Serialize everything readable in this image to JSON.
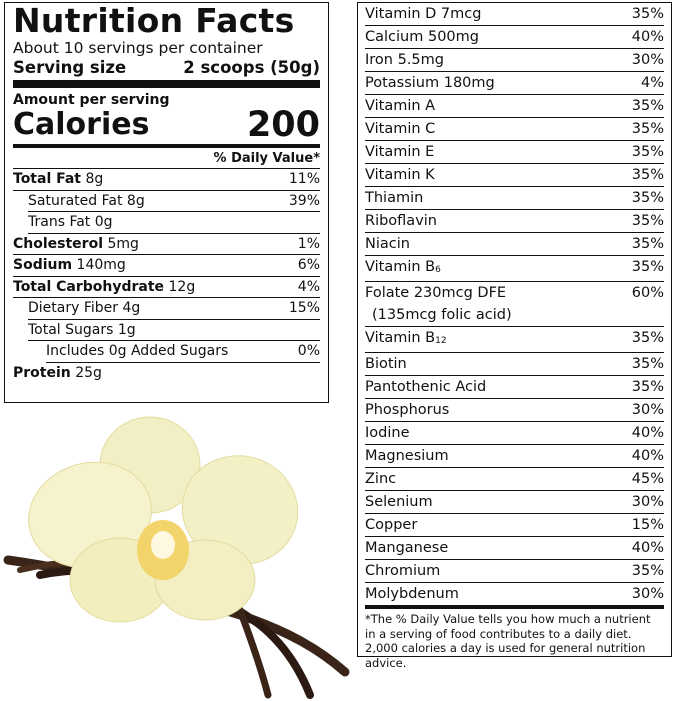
{
  "left_panel": {
    "title": "Nutrition Facts",
    "servings": "About 10 servings per container",
    "serving_size_label": "Serving size",
    "serving_size_value": "2 scoops (50g)",
    "amount_label": "Amount per serving",
    "calories_label": "Calories",
    "calories_value": "200",
    "dv_header": "% Daily Value*",
    "rows": [
      {
        "name": "Total Fat",
        "amount": "8g",
        "dv": "11%"
      },
      {
        "name": "Saturated Fat",
        "amount": "8g",
        "dv": "39%"
      },
      {
        "name": "Trans Fat",
        "amount": "0g"
      },
      {
        "name": "Cholesterol",
        "amount": "5mg",
        "dv": "1%"
      },
      {
        "name": "Sodium",
        "amount": "140mg",
        "dv": "6%"
      },
      {
        "name": "Total Carbohydrate",
        "amount": "12g",
        "dv": "4%"
      },
      {
        "name": "Dietary Fiber",
        "amount": "4g",
        "dv": "15%"
      },
      {
        "name": "Total Sugars",
        "amount": "1g"
      },
      {
        "name": "Includes 0g Added Sugars",
        "dv": "0%"
      },
      {
        "name": "Protein",
        "amount": "25g"
      }
    ]
  },
  "right_panel": {
    "rows": [
      {
        "name": "Vitamin D 7mcg",
        "dv": "35%"
      },
      {
        "name": "Calcium 500mg",
        "dv": "40%"
      },
      {
        "name": "Iron 5.5mg",
        "dv": "30%"
      },
      {
        "name": "Potassium 180mg",
        "dv": "4%"
      },
      {
        "name": "Vitamin A",
        "dv": "35%"
      },
      {
        "name": "Vitamin C",
        "dv": "35%"
      },
      {
        "name": "Vitamin E",
        "dv": "35%"
      },
      {
        "name": "Vitamin K",
        "dv": "35%"
      },
      {
        "name": "Thiamin",
        "dv": "35%"
      },
      {
        "name": "Riboflavin",
        "dv": "35%"
      },
      {
        "name": "Niacin",
        "dv": "35%"
      },
      {
        "name": "Vitamin B",
        "sub": "6",
        "dv": "35%"
      },
      {
        "name": "Folate 230mcg DFE",
        "note": "(135mcg folic acid)",
        "dv": "60%"
      },
      {
        "name": "Vitamin B",
        "sub": "12",
        "dv": "35%"
      },
      {
        "name": "Biotin",
        "dv": "35%"
      },
      {
        "name": "Pantothenic Acid",
        "dv": "35%"
      },
      {
        "name": "Phosphorus",
        "dv": "30%"
      },
      {
        "name": "Iodine",
        "dv": "40%"
      },
      {
        "name": "Magnesium",
        "dv": "40%"
      },
      {
        "name": "Zinc",
        "dv": "45%"
      },
      {
        "name": "Selenium",
        "dv": "30%"
      },
      {
        "name": "Copper",
        "dv": "15%"
      },
      {
        "name": "Manganese",
        "dv": "40%"
      },
      {
        "name": "Chromium",
        "dv": "35%"
      },
      {
        "name": "Molybdenum",
        "dv": "30%"
      }
    ],
    "footnote": "*The % Daily Value tells you how much a nutrient in a serving of food contributes to a daily diet. 2,000 calories a day is used for general nutrition advice."
  }
}
